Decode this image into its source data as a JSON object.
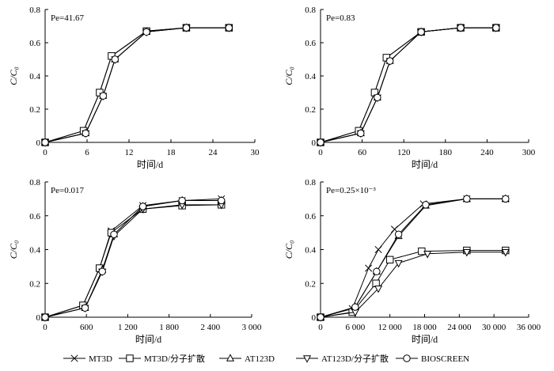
{
  "chart_data": [
    {
      "type": "line",
      "annotation": "Pe=41.67",
      "xlabel": "时间/d",
      "ylabel": "C/C₀",
      "xlim": [
        0,
        30
      ],
      "ylim": [
        0,
        0.8
      ],
      "xticks": [
        "0",
        "6",
        "12",
        "18",
        "24",
        "30"
      ],
      "yticks": [
        "0",
        "0.2",
        "0.4",
        "0.6",
        "0.8"
      ],
      "grid": false,
      "series": [
        {
          "name": "MT3D",
          "x": [
            0,
            5.5,
            7.8,
            9.5,
            14.5,
            20.2,
            26.3
          ],
          "y": [
            0.0,
            0.07,
            0.3,
            0.52,
            0.67,
            0.69,
            0.69
          ]
        },
        {
          "name": "MT3D/分子扩散",
          "x": [
            0,
            5.5,
            7.8,
            9.5,
            14.5,
            20.2,
            26.3
          ],
          "y": [
            0.0,
            0.07,
            0.3,
            0.52,
            0.67,
            0.69,
            0.69
          ]
        },
        {
          "name": "AT123D",
          "x": [
            0,
            5.8,
            8.3,
            10.0,
            14.5,
            20.2,
            26.3
          ],
          "y": [
            0.0,
            0.055,
            0.28,
            0.5,
            0.665,
            0.69,
            0.69
          ]
        },
        {
          "name": "AT123D/分子扩散",
          "x": [
            0,
            5.8,
            8.3,
            10.0,
            14.5,
            20.2,
            26.3
          ],
          "y": [
            0.0,
            0.055,
            0.28,
            0.5,
            0.665,
            0.69,
            0.69
          ]
        },
        {
          "name": "BIOSCREEN",
          "x": [
            0,
            5.8,
            8.3,
            10.0,
            14.5,
            20.2,
            26.3
          ],
          "y": [
            0.0,
            0.055,
            0.28,
            0.5,
            0.665,
            0.69,
            0.69
          ]
        }
      ]
    },
    {
      "type": "line",
      "annotation": "Pe=0.83",
      "xlabel": "时间/d",
      "ylabel": "C/C₀",
      "xlim": [
        0,
        300
      ],
      "ylim": [
        0,
        0.8
      ],
      "xticks": [
        "0",
        "60",
        "120",
        "180",
        "240",
        "300"
      ],
      "yticks": [
        "0",
        "0.2",
        "0.4",
        "0.6",
        "0.8"
      ],
      "grid": false,
      "series": [
        {
          "name": "MT3D",
          "x": [
            0,
            55,
            78,
            95,
            145,
            202,
            253
          ],
          "y": [
            0.0,
            0.07,
            0.3,
            0.51,
            0.665,
            0.69,
            0.69
          ]
        },
        {
          "name": "MT3D/分子扩散",
          "x": [
            0,
            55,
            78,
            95,
            145,
            202,
            253
          ],
          "y": [
            0.0,
            0.07,
            0.3,
            0.51,
            0.665,
            0.69,
            0.69
          ]
        },
        {
          "name": "AT123D",
          "x": [
            0,
            58,
            82,
            100,
            145,
            202,
            253
          ],
          "y": [
            0.0,
            0.055,
            0.27,
            0.49,
            0.665,
            0.69,
            0.69
          ]
        },
        {
          "name": "AT123D/分子扩散",
          "x": [
            0,
            58,
            82,
            100,
            145,
            202,
            253
          ],
          "y": [
            0.0,
            0.055,
            0.27,
            0.49,
            0.665,
            0.69,
            0.69
          ]
        },
        {
          "name": "BIOSCREEN",
          "x": [
            0,
            58,
            82,
            100,
            145,
            202,
            253
          ],
          "y": [
            0.0,
            0.055,
            0.27,
            0.49,
            0.665,
            0.69,
            0.69
          ]
        }
      ]
    },
    {
      "type": "line",
      "annotation": "Pe=0.017",
      "xlabel": "时间/d",
      "ylabel": "C/C₀",
      "xlim": [
        0,
        3000
      ],
      "ylim": [
        0,
        0.8
      ],
      "xticks": [
        "0",
        "600",
        "1 200",
        "1 800",
        "2 400",
        "3 000"
      ],
      "yticks": [
        "0",
        "0.2",
        "0.4",
        "0.6",
        "0.8"
      ],
      "grid": false,
      "series": [
        {
          "name": "MT3D",
          "x": [
            0,
            550,
            790,
            960,
            1420,
            1990,
            2560
          ],
          "y": [
            0.0,
            0.07,
            0.29,
            0.51,
            0.66,
            0.69,
            0.7
          ]
        },
        {
          "name": "MT3D/分子扩散",
          "x": [
            0,
            550,
            790,
            960,
            1420,
            1990,
            2560
          ],
          "y": [
            0.0,
            0.07,
            0.29,
            0.5,
            0.64,
            0.66,
            0.665
          ]
        },
        {
          "name": "AT123D",
          "x": [
            0,
            580,
            830,
            1000,
            1420,
            1990,
            2560
          ],
          "y": [
            0.0,
            0.055,
            0.28,
            0.49,
            0.655,
            0.69,
            0.69
          ]
        },
        {
          "name": "AT123D/分子扩散",
          "x": [
            0,
            580,
            830,
            1000,
            1420,
            1990,
            2560
          ],
          "y": [
            0.0,
            0.055,
            0.27,
            0.48,
            0.64,
            0.665,
            0.665
          ]
        },
        {
          "name": "BIOSCREEN",
          "x": [
            0,
            580,
            830,
            1000,
            1420,
            1990,
            2560
          ],
          "y": [
            0.0,
            0.055,
            0.27,
            0.49,
            0.655,
            0.69,
            0.69
          ]
        }
      ]
    },
    {
      "type": "line",
      "annotation": "Pe=0.25×10⁻³",
      "xlabel": "时间/d",
      "ylabel": "C/C₀",
      "xlim": [
        0,
        36000
      ],
      "ylim": [
        0,
        0.8
      ],
      "xticks": [
        "0",
        "6 000",
        "12 000",
        "18 000",
        "24 000",
        "30 000",
        "36 000"
      ],
      "yticks": [
        "0",
        "0.2",
        "0.4",
        "0.6",
        "0.8"
      ],
      "grid": false,
      "series": [
        {
          "name": "MT3D",
          "x": [
            0,
            5500,
            8300,
            10000,
            12800,
            17800,
            25300,
            32000
          ],
          "y": [
            0.0,
            0.05,
            0.29,
            0.4,
            0.52,
            0.67,
            0.7,
            0.7
          ]
        },
        {
          "name": "MT3D/分子扩散",
          "x": [
            0,
            5500,
            9600,
            12000,
            17500,
            25300,
            32000
          ],
          "y": [
            0.0,
            0.03,
            0.2,
            0.34,
            0.39,
            0.395,
            0.395
          ]
        },
        {
          "name": "AT123D",
          "x": [
            0,
            6000,
            9700,
            13500,
            18200,
            25300,
            32000
          ],
          "y": [
            0.0,
            0.06,
            0.27,
            0.48,
            0.66,
            0.7,
            0.7
          ]
        },
        {
          "name": "AT123D/分子扩散",
          "x": [
            0,
            6000,
            10000,
            13500,
            18500,
            25300,
            32000
          ],
          "y": [
            0.0,
            0.03,
            0.17,
            0.32,
            0.375,
            0.385,
            0.385
          ]
        },
        {
          "name": "BIOSCREEN",
          "x": [
            0,
            6000,
            9700,
            13500,
            18200,
            25300,
            32000
          ],
          "y": [
            0.0,
            0.06,
            0.27,
            0.49,
            0.665,
            0.7,
            0.7
          ]
        }
      ]
    }
  ],
  "legend": {
    "entries": [
      {
        "label": "MT3D",
        "marker": "x"
      },
      {
        "label": "MT3D/分子扩散",
        "marker": "square"
      },
      {
        "label": "AT123D",
        "marker": "triangle-up"
      },
      {
        "label": "AT123D/分子扩散",
        "marker": "triangle-down"
      },
      {
        "label": "BIOSCREEN",
        "marker": "circle"
      }
    ],
    "placement": "bottom"
  }
}
